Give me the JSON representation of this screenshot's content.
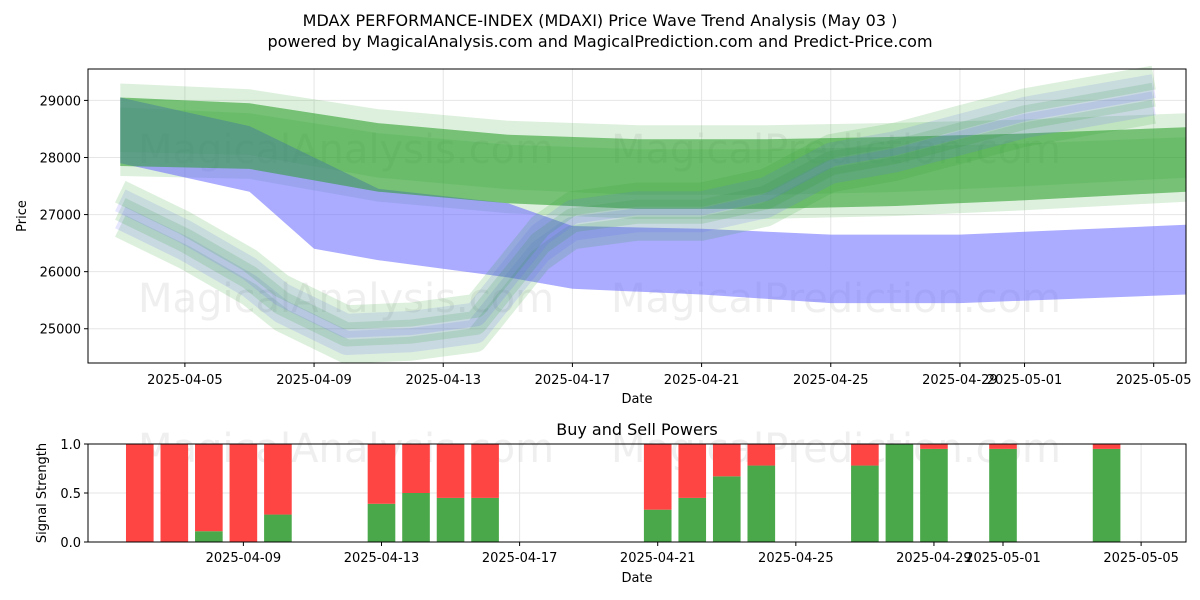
{
  "header": {
    "title_line1": "MDAX PERFORMANCE-INDEX (MDAXI) Price Wave Trend Analysis (May 03 )",
    "title_line2": "powered by MagicalAnalysis.com and MagicalPrediction.com and Predict-Price.com"
  },
  "watermarks": [
    "MagicalAnalysis.com",
    "MagicalPrediction.com"
  ],
  "colors": {
    "green": "#2ca02c",
    "blue": "#6666ff",
    "buy": "#4aa84a",
    "sell": "#ff4444"
  },
  "chart_data": [
    {
      "type": "area",
      "xlabel": "Date",
      "ylabel": "Price",
      "ylim": [
        24400,
        29550
      ],
      "xlim": [
        "2025-04-02",
        "2025-05-06"
      ],
      "grid": true,
      "x_ticks": [
        "2025-04-05",
        "2025-04-09",
        "2025-04-13",
        "2025-04-17",
        "2025-04-21",
        "2025-04-25",
        "2025-04-29",
        "2025-05-01",
        "2025-05-05"
      ],
      "y_ticks": [
        25000,
        26000,
        27000,
        28000,
        29000
      ],
      "series": [
        {
          "color": "green",
          "x": [
            "2025-04-03",
            "2025-04-07",
            "2025-04-11",
            "2025-04-15",
            "2025-04-19",
            "2025-04-23",
            "2025-04-27",
            "2025-05-01",
            "2025-05-06"
          ],
          "upper": [
            29050,
            28950,
            28600,
            28400,
            28320,
            28320,
            28360,
            28420,
            28530
          ],
          "lower": [
            27850,
            27800,
            27400,
            27200,
            27100,
            27100,
            27150,
            27250,
            27400
          ]
        },
        {
          "color": "blue",
          "x": [
            "2025-04-03",
            "2025-04-07",
            "2025-04-09",
            "2025-04-11",
            "2025-04-15",
            "2025-04-17",
            "2025-04-21",
            "2025-04-25",
            "2025-04-29",
            "2025-05-06"
          ],
          "upper": [
            29050,
            28550,
            28000,
            27450,
            27200,
            26800,
            26750,
            26650,
            26650,
            26820
          ],
          "lower": [
            27900,
            27400,
            26400,
            26200,
            25900,
            25700,
            25600,
            25450,
            25450,
            25600
          ]
        }
      ],
      "wave_traces": [
        {
          "x": [
            "2025-04-03",
            "2025-04-05",
            "2025-04-07",
            "2025-04-08",
            "2025-04-10",
            "2025-04-12",
            "2025-04-14",
            "2025-04-15",
            "2025-04-16",
            "2025-04-17",
            "2025-04-19",
            "2025-04-21",
            "2025-04-23",
            "2025-04-25",
            "2025-04-27",
            "2025-04-29",
            "2025-05-01",
            "2025-05-03",
            "2025-05-05"
          ],
          "y": [
            27100,
            26550,
            25900,
            25450,
            24900,
            24950,
            25100,
            25800,
            26500,
            26900,
            27050,
            27050,
            27300,
            27900,
            28100,
            28400,
            28700,
            28900,
            29100
          ]
        }
      ]
    },
    {
      "type": "bar",
      "title": "Buy and Sell Powers",
      "xlabel": "Date",
      "ylabel": "Signal Strength",
      "ylim": [
        0,
        1
      ],
      "grid": true,
      "x_ticks": [
        "2025-04-09",
        "2025-04-13",
        "2025-04-17",
        "2025-04-21",
        "2025-04-25",
        "2025-04-29",
        "2025-05-01",
        "2025-05-05"
      ],
      "y_ticks": [
        "0.0",
        "0.5",
        "1.0"
      ],
      "x": [
        "2025-04-06",
        "2025-04-07",
        "2025-04-08",
        "2025-04-09",
        "2025-04-10",
        "2025-04-13",
        "2025-04-14",
        "2025-04-15",
        "2025-04-16",
        "2025-04-21",
        "2025-04-22",
        "2025-04-23",
        "2025-04-24",
        "2025-04-27",
        "2025-04-28",
        "2025-04-29",
        "2025-05-01",
        "2025-05-04"
      ],
      "series": [
        {
          "name": "buy",
          "values": [
            0,
            0,
            0.11,
            0,
            0.28,
            0.39,
            0.5,
            0.45,
            0.45,
            0.33,
            0.45,
            0.67,
            0.78,
            0.78,
            1.0,
            0.95,
            0.95,
            0.95
          ]
        },
        {
          "name": "sell",
          "values": [
            1.0,
            1.0,
            0.89,
            1.0,
            0.72,
            0.61,
            0.5,
            0.55,
            0.55,
            0.67,
            0.55,
            0.33,
            0.22,
            0.22,
            0,
            0.05,
            0.05,
            0.05
          ]
        }
      ]
    }
  ]
}
